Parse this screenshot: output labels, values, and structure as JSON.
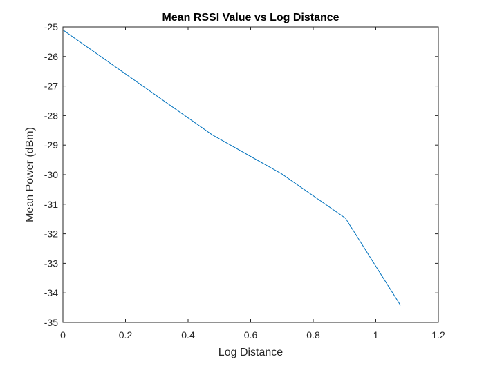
{
  "chart_data": {
    "type": "line",
    "title": "Mean RSSI Value vs Log Distance",
    "xlabel": "Log Distance",
    "ylabel": "Mean Power (dBm)",
    "xlim": [
      0,
      1.2
    ],
    "ylim": [
      -35,
      -25
    ],
    "xticks": [
      "0",
      "0.2",
      "0.4",
      "0.6",
      "0.8",
      "1",
      "1.2"
    ],
    "yticks": [
      "-35",
      "-34",
      "-33",
      "-32",
      "-31",
      "-30",
      "-29",
      "-28",
      "-27",
      "-26",
      "-25"
    ],
    "grid": false,
    "series": [
      {
        "color": "#0072BD",
        "x": [
          0,
          0.477,
          0.699,
          0.903,
          1.079
        ],
        "y": [
          -25.1,
          -28.65,
          -29.97,
          -31.47,
          -34.42
        ]
      }
    ]
  }
}
